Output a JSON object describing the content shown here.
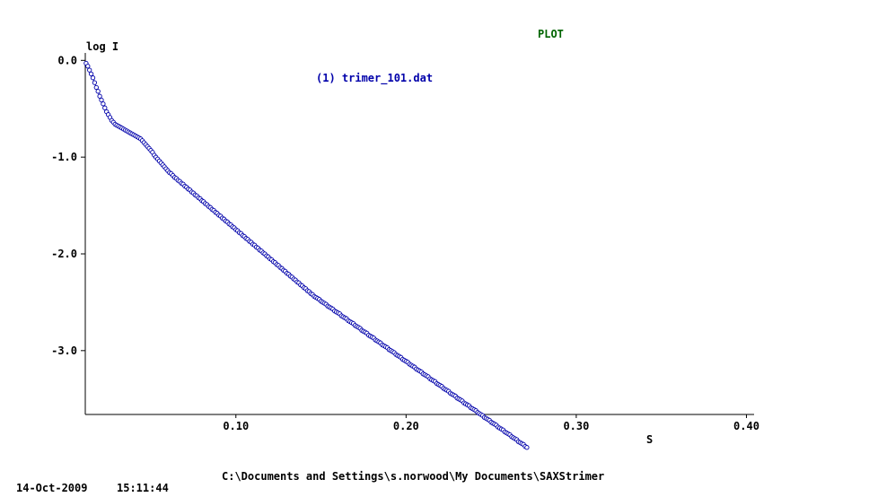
{
  "header": {
    "title": "PLOT",
    "title_color": "#006400"
  },
  "footer": {
    "path": "C:\\Documents and Settings\\s.norwood\\My Documents\\SAXStrimer",
    "date": "14-Oct-2009",
    "time": "15:11:44"
  },
  "colors": {
    "series": "#0000aa",
    "axes": "#000000"
  },
  "chart_data": {
    "type": "line",
    "title": "PLOT",
    "xlabel": "S",
    "ylabel": "log I",
    "xlim": [
      0.0115,
      0.4045
    ],
    "ylim": [
      -3.66,
      0.04
    ],
    "x_ticks": [
      {
        "value": 0.1,
        "label": "0.10"
      },
      {
        "value": 0.2,
        "label": "0.20"
      },
      {
        "value": 0.3,
        "label": "0.30"
      },
      {
        "value": 0.4,
        "label": "0.40"
      }
    ],
    "y_ticks": [
      {
        "value": 0.0,
        "label": "0.0"
      },
      {
        "value": -1.0,
        "label": "-1.0"
      },
      {
        "value": -2.0,
        "label": "-2.0"
      },
      {
        "value": -3.0,
        "label": "-3.0"
      }
    ],
    "grid": false,
    "legend_position": "top-center",
    "series": [
      {
        "name": "(1) trimer_101.dat",
        "x_start": 0.012,
        "x_step": 0.001,
        "values": [
          -0.03,
          -0.06,
          -0.1,
          -0.14,
          -0.18,
          -0.23,
          -0.28,
          -0.32,
          -0.37,
          -0.41,
          -0.45,
          -0.49,
          -0.53,
          -0.56,
          -0.59,
          -0.62,
          -0.64,
          -0.66,
          -0.67,
          -0.68,
          -0.69,
          -0.7,
          -0.71,
          -0.72,
          -0.73,
          -0.74,
          -0.75,
          -0.76,
          -0.77,
          -0.78,
          -0.79,
          -0.8,
          -0.81,
          -0.83,
          -0.85,
          -0.87,
          -0.89,
          -0.91,
          -0.93,
          -0.95,
          -0.98,
          -1.0,
          -1.02,
          -1.04,
          -1.06,
          -1.08,
          -1.1,
          -1.12,
          -1.14,
          -1.16,
          -1.17,
          -1.19,
          -1.21,
          -1.22,
          -1.24,
          -1.25,
          -1.27,
          -1.28,
          -1.3,
          -1.31,
          -1.33,
          -1.34,
          -1.36,
          -1.37,
          -1.39,
          -1.4,
          -1.42,
          -1.43,
          -1.45,
          -1.46,
          -1.48,
          -1.49,
          -1.51,
          -1.52,
          -1.54,
          -1.55,
          -1.57,
          -1.58,
          -1.6,
          -1.61,
          -1.63,
          -1.64,
          -1.66,
          -1.67,
          -1.69,
          -1.7,
          -1.72,
          -1.73,
          -1.75,
          -1.76,
          -1.78,
          -1.79,
          -1.81,
          -1.82,
          -1.84,
          -1.85,
          -1.87,
          -1.88,
          -1.9,
          -1.91,
          -1.93,
          -1.94,
          -1.96,
          -1.97,
          -1.99,
          -2.0,
          -2.02,
          -2.03,
          -2.05,
          -2.06,
          -2.08,
          -2.09,
          -2.11,
          -2.12,
          -2.14,
          -2.15,
          -2.17,
          -2.18,
          -2.2,
          -2.21,
          -2.23,
          -2.24,
          -2.26,
          -2.27,
          -2.29,
          -2.3,
          -2.32,
          -2.33,
          -2.35,
          -2.36,
          -2.38,
          -2.39,
          -2.41,
          -2.42,
          -2.44,
          -2.45,
          -2.46,
          -2.47,
          -2.49,
          -2.5,
          -2.51,
          -2.52,
          -2.54,
          -2.55,
          -2.56,
          -2.57,
          -2.59,
          -2.6,
          -2.61,
          -2.62,
          -2.64,
          -2.65,
          -2.66,
          -2.67,
          -2.69,
          -2.7,
          -2.71,
          -2.72,
          -2.74,
          -2.75,
          -2.76,
          -2.77,
          -2.79,
          -2.8,
          -2.81,
          -2.82,
          -2.84,
          -2.85,
          -2.86,
          -2.87,
          -2.89,
          -2.9,
          -2.91,
          -2.92,
          -2.94,
          -2.95,
          -2.96,
          -2.97,
          -2.99,
          -3.0,
          -3.01,
          -3.02,
          -3.04,
          -3.05,
          -3.06,
          -3.07,
          -3.09,
          -3.1,
          -3.11,
          -3.12,
          -3.14,
          -3.15,
          -3.16,
          -3.17,
          -3.19,
          -3.2,
          -3.21,
          -3.22,
          -3.24,
          -3.25,
          -3.26,
          -3.27,
          -3.29,
          -3.3,
          -3.31,
          -3.32,
          -3.34,
          -3.35,
          -3.36,
          -3.37,
          -3.39,
          -3.4,
          -3.41,
          -3.42,
          -3.44,
          -3.45,
          -3.46,
          -3.47,
          -3.49,
          -3.5,
          -3.51,
          -3.52,
          -3.54,
          -3.55,
          -3.56,
          -3.57,
          -3.59,
          -3.6,
          -3.61,
          -3.62,
          -3.64,
          -3.65,
          -3.66,
          -3.67,
          -3.69,
          -3.7,
          -3.71,
          -3.72,
          -3.74,
          -3.75,
          -3.76,
          -3.77,
          -3.79,
          -3.8,
          -3.81,
          -3.82,
          -3.84,
          -3.85,
          -3.86,
          -3.87,
          -3.89,
          -3.9,
          -3.91,
          -3.92,
          -3.94,
          -3.95,
          -3.96,
          -3.97,
          -3.99,
          -4.0
        ]
      }
    ]
  }
}
